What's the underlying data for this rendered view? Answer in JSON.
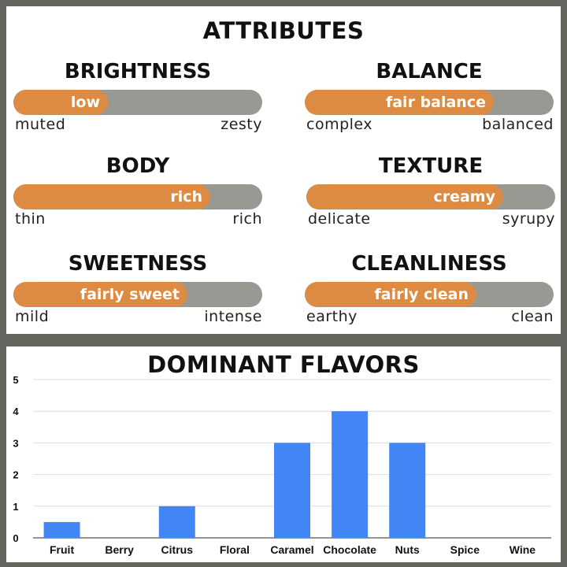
{
  "attributes": {
    "title": "ATTRIBUTES",
    "items": [
      {
        "name": "BRIGHTNESS",
        "value_label": "low",
        "left_label": "muted",
        "right_label": "zesty",
        "level": 0.38
      },
      {
        "name": "BALANCE",
        "value_label": "fair balance",
        "left_label": "complex",
        "right_label": "balanced",
        "level": 0.76
      },
      {
        "name": "BODY",
        "value_label": "rich",
        "left_label": "thin",
        "right_label": "rich",
        "level": 0.79
      },
      {
        "name": "TEXTURE",
        "value_label": "creamy",
        "left_label": "delicate",
        "right_label": "syrupy",
        "level": 0.79
      },
      {
        "name": "SWEETNESS",
        "value_label": "fairly sweet",
        "left_label": "mild",
        "right_label": "intense",
        "level": 0.7
      },
      {
        "name": "CLEANLINESS",
        "value_label": "fairly clean",
        "left_label": "earthy",
        "right_label": "clean",
        "level": 0.69
      }
    ]
  },
  "colors": {
    "frame": "#65645f",
    "track": "#999994",
    "fill": "#dd8b43",
    "bar": "#4285f4",
    "grid": "#dddddd"
  },
  "chart_data": {
    "type": "bar",
    "title": "DOMINANT FLAVORS",
    "xlabel": "",
    "ylabel": "",
    "categories": [
      "Fruit",
      "Berry",
      "Citrus",
      "Floral",
      "Caramel",
      "Chocolate",
      "Nuts",
      "Spice",
      "Wine"
    ],
    "values": [
      0.5,
      0,
      1,
      0,
      3,
      4,
      3,
      0,
      0
    ],
    "ylim": [
      0,
      5
    ],
    "yticks": [
      0,
      1,
      2,
      3,
      4,
      5
    ],
    "grid": true,
    "legend": "none"
  }
}
